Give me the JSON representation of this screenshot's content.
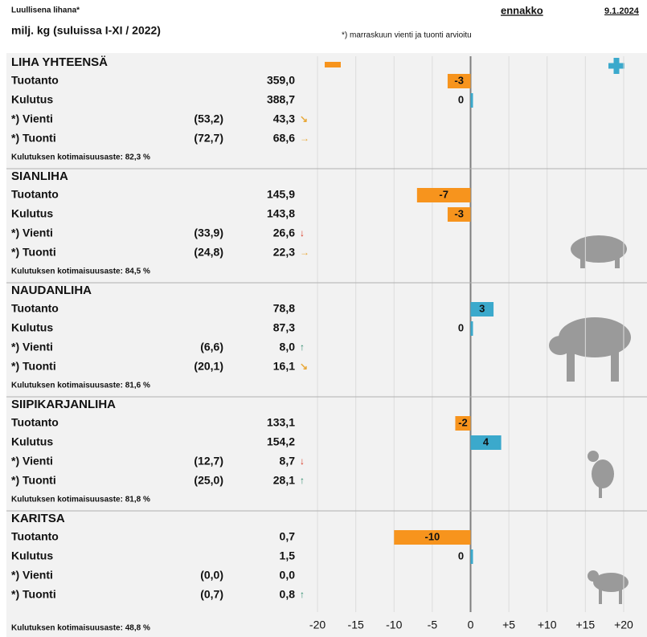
{
  "header": {
    "title": "Luullisena lihana*",
    "unit": "milj. kg (suluissa I-XI / 2022)",
    "status": "ennakko",
    "date": "9.1.2024",
    "footnote": "*) marraskuun vienti ja tuonti arvioitu"
  },
  "sections": [
    {
      "title": "LIHA YHTEENSÄ",
      "rows": [
        {
          "label": "Tuotanto",
          "value": "359,0"
        },
        {
          "label": "Kulutus",
          "value": "388,7"
        },
        {
          "label": "*) Vienti",
          "prev": "(53,2)",
          "value": "43,3"
        },
        {
          "label": "*) Tuonti",
          "prev": "(72,7)",
          "value": "68,6"
        }
      ],
      "note": "Kulutuksen kotimaisuusaste: 82,3 %"
    },
    {
      "title": "SIANLIHA",
      "rows": [
        {
          "label": "Tuotanto",
          "value": "145,9"
        },
        {
          "label": "Kulutus",
          "value": "143,8"
        },
        {
          "label": "*) Vienti",
          "prev": "(33,9)",
          "value": "26,6"
        },
        {
          "label": "*) Tuonti",
          "prev": "(24,8)",
          "value": "22,3"
        }
      ],
      "note": "Kulutuksen kotimaisuusaste: 84,5 %"
    },
    {
      "title": "NAUDANLIHA",
      "rows": [
        {
          "label": "Tuotanto",
          "value": "78,8"
        },
        {
          "label": "Kulutus",
          "value": "87,3"
        },
        {
          "label": "*) Vienti",
          "prev": "(6,6)",
          "value": "8,0"
        },
        {
          "label": "*) Tuonti",
          "prev": "(20,1)",
          "value": "16,1"
        }
      ],
      "note": "Kulutuksen kotimaisuusaste: 81,6 %"
    },
    {
      "title": "SIIPIKARJANLIHA",
      "rows": [
        {
          "label": "Tuotanto",
          "value": "133,1"
        },
        {
          "label": "Kulutus",
          "value": "154,2"
        },
        {
          "label": "*) Vienti",
          "prev": "(12,7)",
          "value": "8,7"
        },
        {
          "label": "*) Tuonti",
          "prev": "(25,0)",
          "value": "28,1"
        }
      ],
      "note": "Kulutuksen kotimaisuusaste: 81,8 %"
    },
    {
      "title": "KARITSA",
      "rows": [
        {
          "label": "Tuotanto",
          "value": "0,7"
        },
        {
          "label": "Kulutus",
          "value": "1,5"
        },
        {
          "label": "*) Vienti",
          "prev": "(0,0)",
          "value": "0,0"
        },
        {
          "label": "*) Tuonti",
          "prev": "(0,7)",
          "value": "0,8"
        }
      ],
      "note": "Kulutuksen kotimaisuusaste: 48,8 %"
    }
  ],
  "chart_data": {
    "type": "bar",
    "orientation": "horizontal",
    "values": [
      -3,
      0,
      -7,
      -3,
      3,
      0,
      -2,
      4,
      -10,
      0
    ],
    "negative_color": "#f7941d",
    "positive_color": "#3ba9cc",
    "xlim": [
      -22,
      22
    ],
    "xticks": [
      -20,
      -15,
      -10,
      -5,
      0,
      {
        "value": 5,
        "label": "+5"
      },
      {
        "value": 10,
        "label": "+10"
      },
      {
        "value": 15,
        "label": "+15"
      },
      {
        "value": 20,
        "label": "+20"
      }
    ],
    "grid": true
  }
}
